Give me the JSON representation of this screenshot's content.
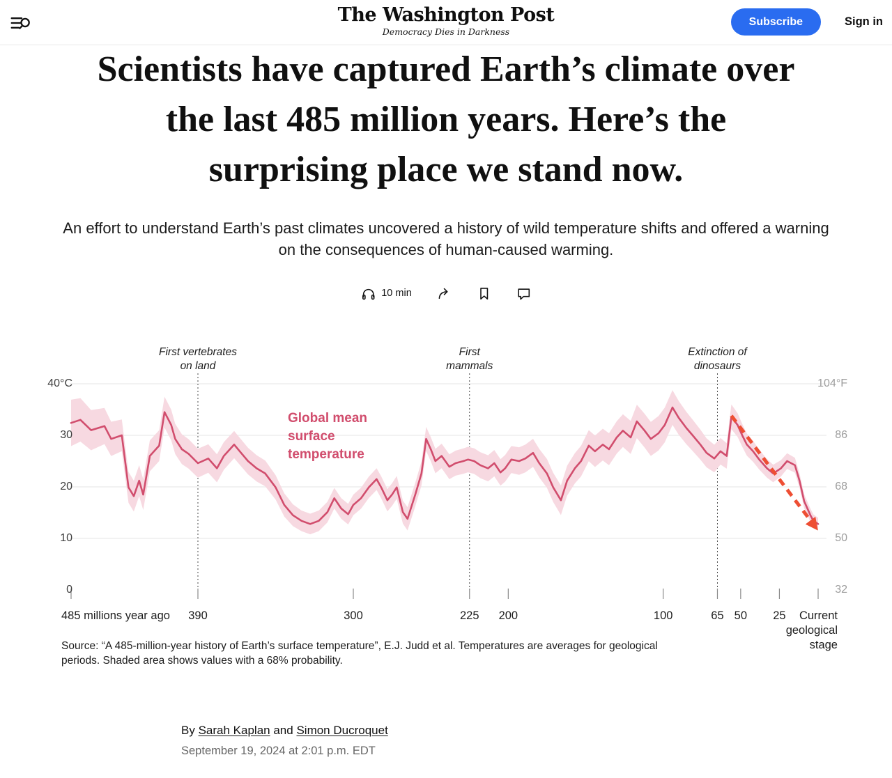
{
  "header": {
    "logo_title": "The Washington Post",
    "tagline": "Democracy Dies in Darkness",
    "subscribe_label": "Subscribe",
    "signin_label": "Sign in",
    "subscribe_color": "#2a6cf0"
  },
  "article": {
    "headline_lines": [
      "Scientists have captured Earth’s climate over",
      "the last 485 million years. Here’s the",
      "surprising place we stand now."
    ],
    "subheadline_lines": [
      "An effort to understand Earth’s past climates uncovered a history of wild temperature shifts and offered a warning",
      "on the consequences of human-caused warming."
    ],
    "read_time": "10 min",
    "byline_prefix": "By",
    "authors": [
      "Sarah Kaplan",
      "Simon Ducroquet"
    ],
    "and_word": "and",
    "published": "September 19, 2024 at 2:01 p.m. EDT",
    "source_note_lines": [
      "Source: “A 485-million-year history of Earth’s surface temperature”, E.J. Judd et al. Temperatures are averages for geological",
      "periods. Shaded area shows values with a 68% probability."
    ]
  },
  "chart_data": {
    "type": "line",
    "title_label": "Global mean surface temperature",
    "x_axis": {
      "label": "millions of years ago",
      "max_age": 485,
      "ticks": [
        {
          "age": 485,
          "label": "485 millions year ago",
          "align": "left"
        },
        {
          "age": 390,
          "label": "390"
        },
        {
          "age": 300,
          "label": "300"
        },
        {
          "age": 225,
          "label": "225"
        },
        {
          "age": 200,
          "label": "200"
        },
        {
          "age": 100,
          "label": "100"
        },
        {
          "age": 65,
          "label": "65"
        },
        {
          "age": 50,
          "label": "50"
        },
        {
          "age": 25,
          "label": "25"
        },
        {
          "age": 0,
          "label": "Current geological stage",
          "align": "right-wrap"
        }
      ]
    },
    "y_axis_left": {
      "unit": "°C",
      "range": [
        0,
        40
      ],
      "ticks": [
        {
          "value": 40,
          "label": "40°C"
        },
        {
          "value": 30,
          "label": "30"
        },
        {
          "value": 20,
          "label": "20"
        },
        {
          "value": 10,
          "label": "10"
        },
        {
          "value": 0,
          "label": "0"
        }
      ]
    },
    "y_axis_right": {
      "unit": "°F",
      "ticks": [
        {
          "value": 40,
          "label": "104°F"
        },
        {
          "value": 30,
          "label": "86"
        },
        {
          "value": 20,
          "label": "68"
        },
        {
          "value": 10,
          "label": "50"
        },
        {
          "value": 0,
          "label": "32"
        }
      ]
    },
    "annotations": [
      {
        "age": 390,
        "lines": [
          "First vertebrates",
          "on land"
        ]
      },
      {
        "age": 225,
        "lines": [
          "First",
          "mammals"
        ]
      },
      {
        "age": 65,
        "lines": [
          "Extinction of",
          "dinosaurs"
        ]
      }
    ],
    "series": [
      {
        "name": "Global mean surface temperature (°C)",
        "points": [
          [
            485,
            32.4
          ],
          [
            478,
            33.0
          ],
          [
            470,
            31.0
          ],
          [
            460,
            31.8
          ],
          [
            455,
            29.3
          ],
          [
            447,
            30.0
          ],
          [
            442,
            19.9
          ],
          [
            438,
            18.2
          ],
          [
            434,
            21.2
          ],
          [
            431,
            18.5
          ],
          [
            426,
            26.0
          ],
          [
            419,
            28.0
          ],
          [
            415,
            34.5
          ],
          [
            410,
            32.0
          ],
          [
            407,
            29.3
          ],
          [
            402,
            27.3
          ],
          [
            397,
            26.4
          ],
          [
            390,
            24.6
          ],
          [
            384,
            25.5
          ],
          [
            379,
            23.6
          ],
          [
            375,
            26.0
          ],
          [
            369,
            28.2
          ],
          [
            365,
            26.6
          ],
          [
            361,
            25.0
          ],
          [
            356,
            23.6
          ],
          [
            351,
            22.6
          ],
          [
            345,
            19.9
          ],
          [
            340,
            16.5
          ],
          [
            335,
            14.5
          ],
          [
            330,
            13.4
          ],
          [
            325,
            12.8
          ],
          [
            320,
            13.4
          ],
          [
            315,
            15.1
          ],
          [
            311,
            17.8
          ],
          [
            307,
            15.8
          ],
          [
            303,
            14.7
          ],
          [
            300,
            16.5
          ],
          [
            295,
            17.8
          ],
          [
            290,
            19.9
          ],
          [
            285,
            21.5
          ],
          [
            282,
            19.9
          ],
          [
            278,
            17.4
          ],
          [
            275,
            18.5
          ],
          [
            272,
            19.9
          ],
          [
            268,
            15.1
          ],
          [
            265,
            13.8
          ],
          [
            260,
            18.5
          ],
          [
            256,
            22.6
          ],
          [
            253,
            29.3
          ],
          [
            250,
            27.3
          ],
          [
            247,
            25.0
          ],
          [
            243,
            26.0
          ],
          [
            238,
            23.9
          ],
          [
            234,
            24.6
          ],
          [
            229,
            25.0
          ],
          [
            226,
            25.3
          ],
          [
            222,
            25.0
          ],
          [
            218,
            24.2
          ],
          [
            213,
            23.6
          ],
          [
            209,
            24.6
          ],
          [
            205,
            22.8
          ],
          [
            202,
            23.6
          ],
          [
            198,
            25.3
          ],
          [
            193,
            25.0
          ],
          [
            189,
            25.5
          ],
          [
            184,
            26.6
          ],
          [
            180,
            24.6
          ],
          [
            175,
            22.6
          ],
          [
            171,
            19.9
          ],
          [
            166,
            17.4
          ],
          [
            162,
            21.2
          ],
          [
            157,
            23.6
          ],
          [
            153,
            25.0
          ],
          [
            148,
            28.0
          ],
          [
            144,
            26.9
          ],
          [
            139,
            28.2
          ],
          [
            135,
            27.3
          ],
          [
            130,
            29.6
          ],
          [
            126,
            30.9
          ],
          [
            121,
            29.6
          ],
          [
            117,
            32.7
          ],
          [
            112,
            30.9
          ],
          [
            108,
            29.3
          ],
          [
            103,
            30.4
          ],
          [
            99,
            32.0
          ],
          [
            94,
            35.4
          ],
          [
            90,
            33.4
          ],
          [
            85,
            31.4
          ],
          [
            81,
            30.0
          ],
          [
            76,
            28.2
          ],
          [
            72,
            26.6
          ],
          [
            67,
            25.5
          ],
          [
            63,
            26.9
          ],
          [
            59,
            26.0
          ],
          [
            56,
            33.6
          ],
          [
            52,
            32.0
          ],
          [
            49,
            30.0
          ],
          [
            46,
            28.2
          ],
          [
            42,
            26.9
          ],
          [
            38,
            25.3
          ],
          [
            33,
            23.6
          ],
          [
            29,
            22.6
          ],
          [
            24,
            23.6
          ],
          [
            20,
            25.0
          ],
          [
            15,
            24.2
          ],
          [
            12,
            21.2
          ],
          [
            9,
            17.2
          ],
          [
            5,
            14.5
          ],
          [
            3,
            13.4
          ],
          [
            0,
            12.8
          ]
        ]
      }
    ],
    "band": {
      "label": "68% probability",
      "halfwidth_control_points": [
        [
          485,
          4.5
        ],
        [
          460,
          3.5
        ],
        [
          445,
          3.0
        ],
        [
          415,
          3.0
        ],
        [
          390,
          2.8
        ],
        [
          350,
          2.5
        ],
        [
          330,
          2.0
        ],
        [
          300,
          2.0
        ],
        [
          260,
          2.3
        ],
        [
          200,
          2.6
        ],
        [
          150,
          3.0
        ],
        [
          95,
          3.4
        ],
        [
          56,
          2.4
        ],
        [
          25,
          1.6
        ],
        [
          0,
          1.2
        ]
      ]
    },
    "trend_arrow": {
      "from_age": 56,
      "from_temp": 33.8,
      "to_age": 2,
      "to_temp": 12.3
    },
    "grid": true,
    "colors": {
      "line": "#d14d6d",
      "band": "#f7d9e1",
      "arrow": "#ee4e33",
      "grid": "#e4e4e4",
      "event_line": "#4a4a4a"
    }
  }
}
